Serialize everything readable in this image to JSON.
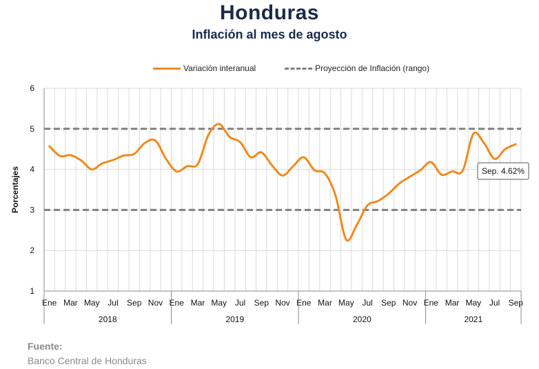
{
  "title": "Honduras",
  "subtitle": "Inflación al mes de agosto",
  "legend": {
    "series1": "Variación interanual",
    "series2": "Proyección de Inflación (rango)"
  },
  "source": {
    "label": "Fuente:",
    "text": "Banco Central de Honduras"
  },
  "colors": {
    "line": "#ef8a1e",
    "range": "#808080",
    "title": "#1b2a4a"
  },
  "chart_data": {
    "type": "line",
    "ylabel": "Porcentajes",
    "ylim": [
      1,
      6
    ],
    "yticks": [
      1,
      2,
      3,
      4,
      5,
      6
    ],
    "grid": true,
    "legend_position": "top",
    "month_labels": [
      "Ene",
      "Mar",
      "May",
      "Jul",
      "Sep",
      "Nov",
      "Ene",
      "Mar",
      "May",
      "Jul",
      "Sep",
      "Nov",
      "Ene",
      "Mar",
      "May",
      "Jul",
      "Sep",
      "Nov",
      "Ene",
      "Mar",
      "May",
      "Jul",
      "Sep"
    ],
    "years": [
      "2018",
      "2019",
      "2020",
      "2021"
    ],
    "x": [
      "2018-01",
      "2018-02",
      "2018-03",
      "2018-04",
      "2018-05",
      "2018-06",
      "2018-07",
      "2018-08",
      "2018-09",
      "2018-10",
      "2018-11",
      "2018-12",
      "2019-01",
      "2019-02",
      "2019-03",
      "2019-04",
      "2019-05",
      "2019-06",
      "2019-07",
      "2019-08",
      "2019-09",
      "2019-10",
      "2019-11",
      "2019-12",
      "2020-01",
      "2020-02",
      "2020-03",
      "2020-04",
      "2020-05",
      "2020-06",
      "2020-07",
      "2020-08",
      "2020-09",
      "2020-10",
      "2020-11",
      "2020-12",
      "2021-01",
      "2021-02",
      "2021-03",
      "2021-04",
      "2021-05",
      "2021-06",
      "2021-07",
      "2021-08",
      "2021-09"
    ],
    "series": [
      {
        "name": "Variación interanual",
        "values": [
          4.57,
          4.33,
          4.35,
          4.22,
          4.0,
          4.15,
          4.23,
          4.34,
          4.38,
          4.65,
          4.71,
          4.26,
          3.95,
          4.08,
          4.13,
          4.85,
          5.12,
          4.8,
          4.67,
          4.3,
          4.42,
          4.1,
          3.85,
          4.08,
          4.3,
          3.98,
          3.9,
          3.35,
          2.27,
          2.63,
          3.11,
          3.22,
          3.4,
          3.65,
          3.82,
          3.98,
          4.18,
          3.87,
          3.95,
          3.97,
          4.88,
          4.65,
          4.26,
          4.5,
          4.62
        ]
      }
    ],
    "range_lines": [
      3,
      5
    ],
    "annotation": "Sep. 4.62%"
  }
}
